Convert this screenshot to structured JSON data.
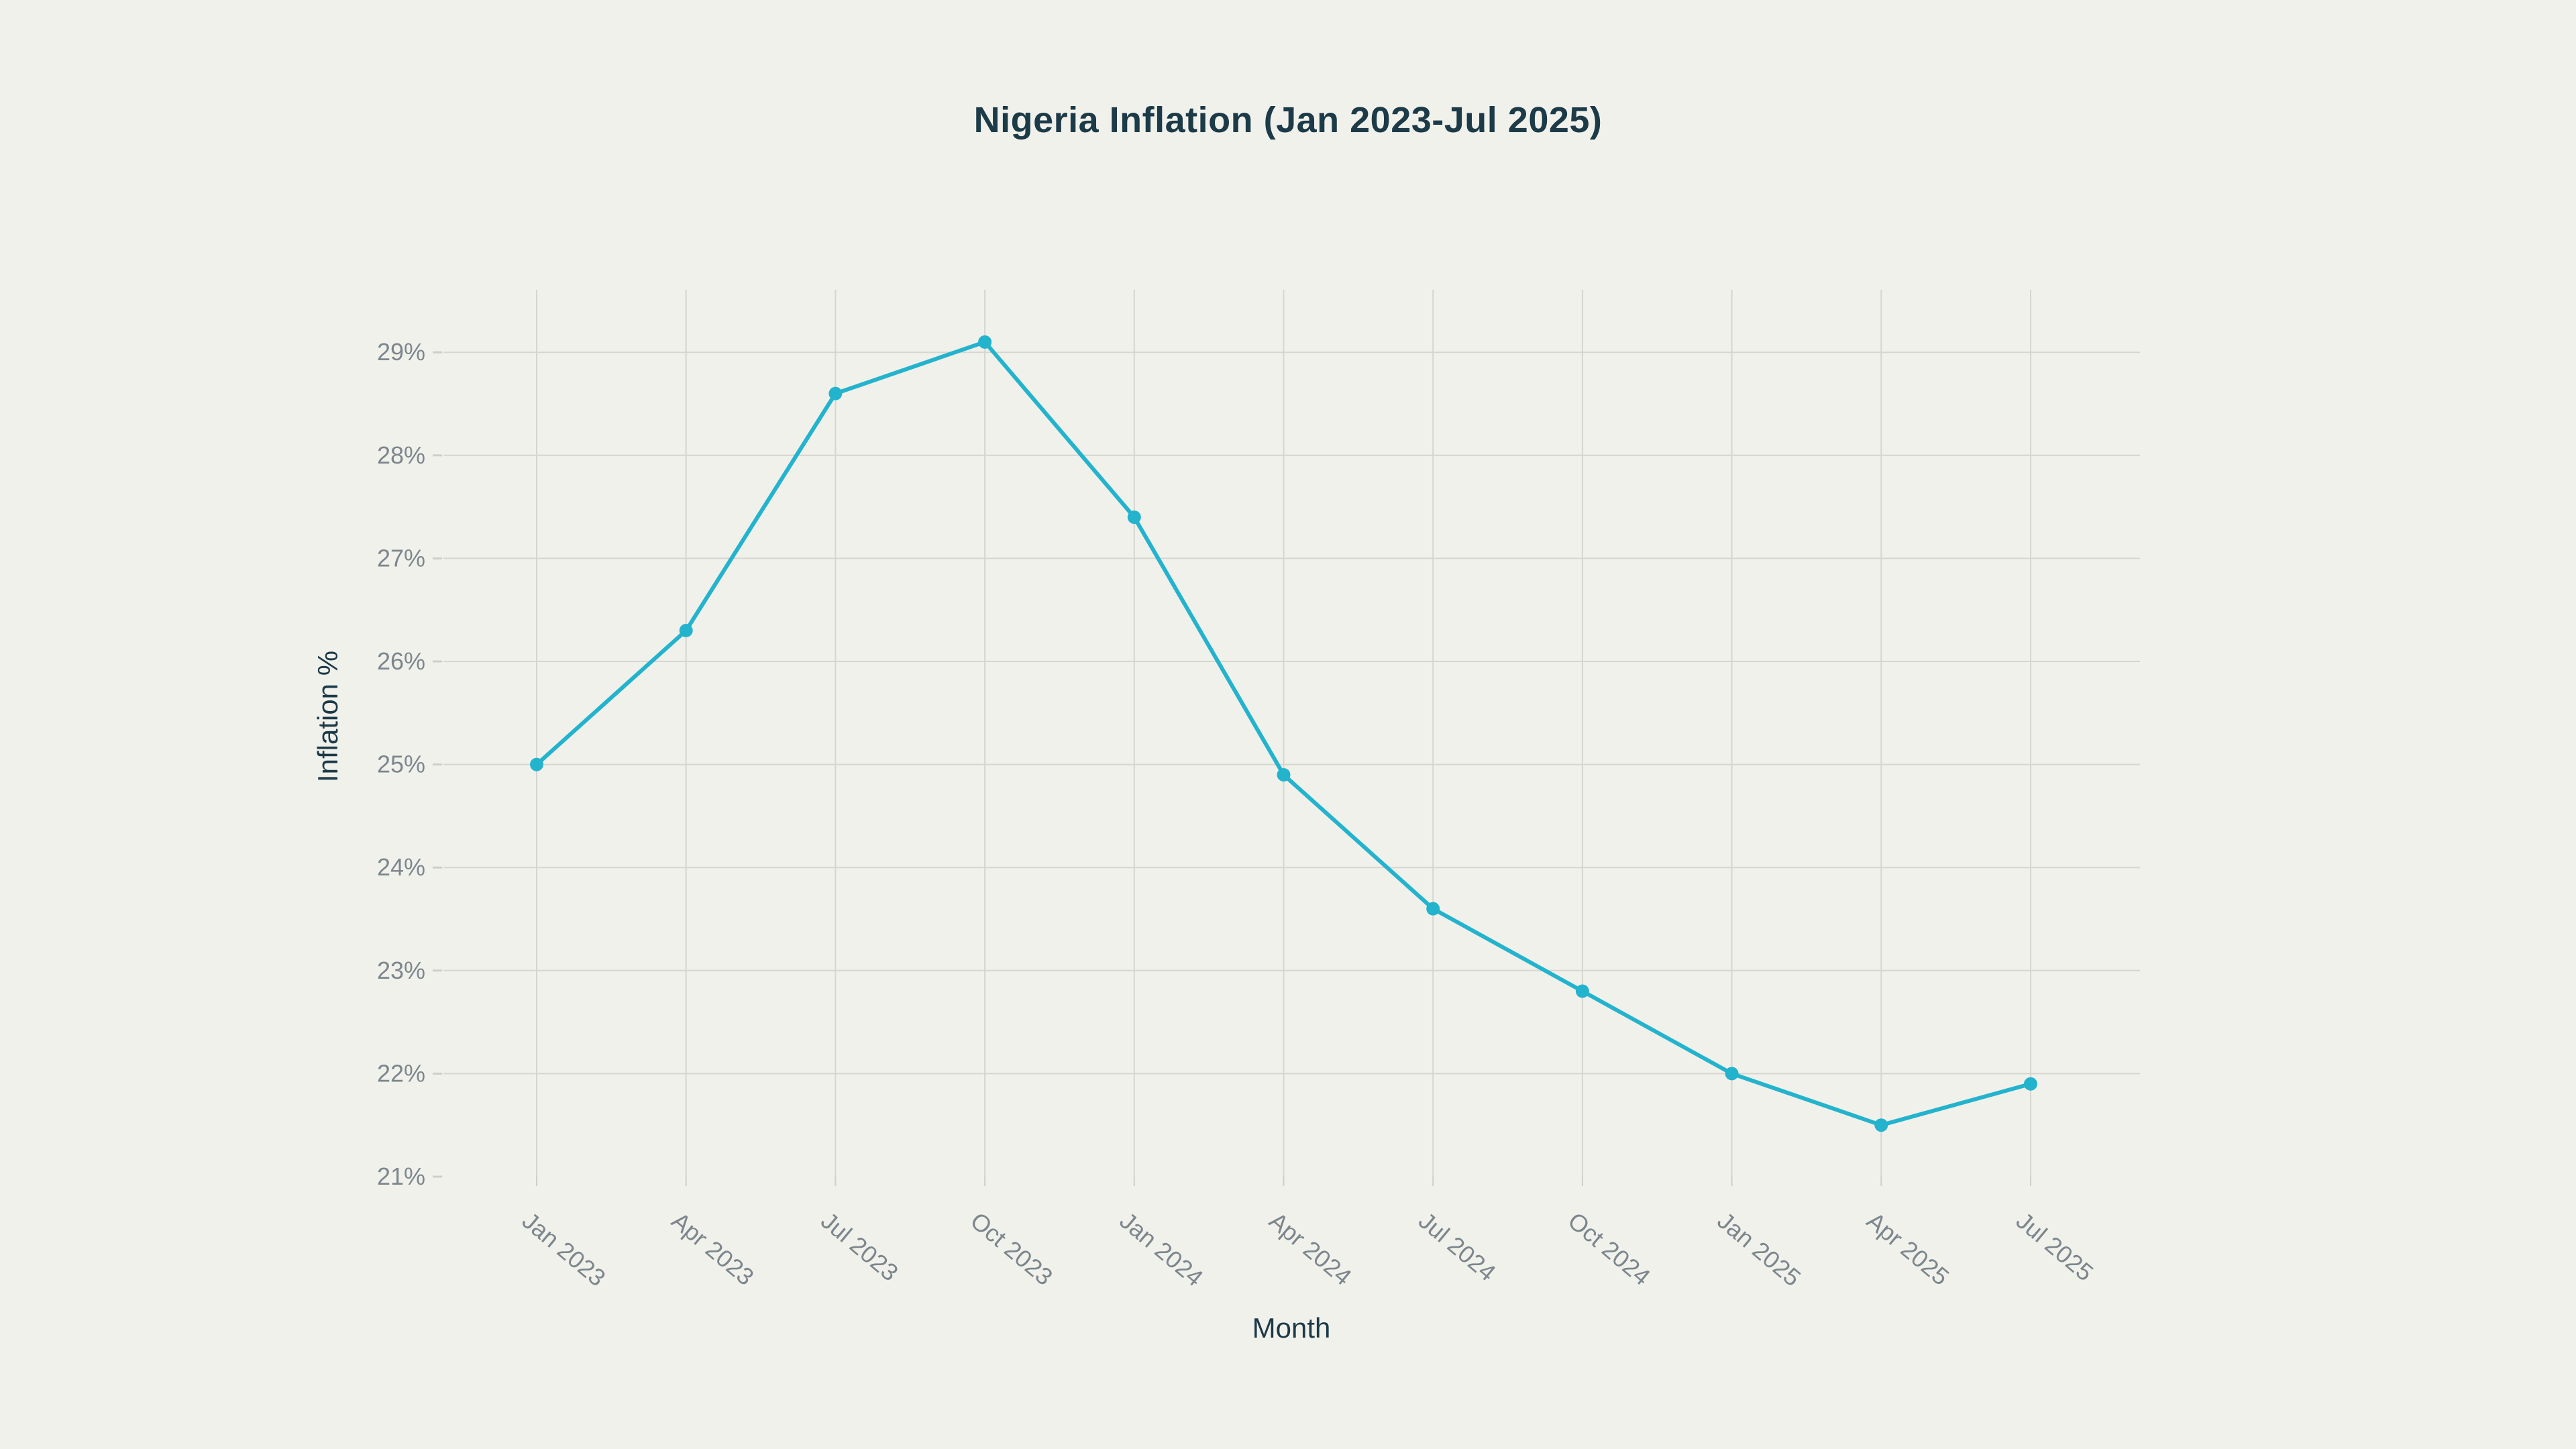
{
  "chart_data": {
    "type": "line",
    "title": "Nigeria Inflation (Jan 2023-Jul 2025)",
    "xlabel": "Month",
    "ylabel": "Inflation %",
    "categories": [
      "Jan 2023",
      "Apr 2023",
      "Jul 2023",
      "Oct 2023",
      "Jan 2024",
      "Apr 2024",
      "Jul 2024",
      "Oct 2024",
      "Jan 2025",
      "Apr 2025",
      "Jul 2025"
    ],
    "values": [
      25.0,
      26.3,
      28.6,
      29.1,
      27.4,
      24.9,
      23.6,
      22.8,
      22.0,
      21.5,
      21.9
    ],
    "y_tick_labels": [
      "21%",
      "22%",
      "23%",
      "24%",
      "25%",
      "26%",
      "27%",
      "28%",
      "29%"
    ],
    "y_tick_values": [
      21,
      22,
      23,
      24,
      25,
      26,
      27,
      28,
      29
    ],
    "ylim": [
      21,
      29.6
    ],
    "grid": true,
    "legend": false,
    "x_tick_angle_deg": 40,
    "colors": {
      "background": "#f1f1ec",
      "line": "#24b3cd",
      "marker": "#24b3cd",
      "gridline": "#d6d6d0",
      "tick_mark": "#cfcfc9",
      "tick_label": "#7c868c",
      "title_text": "#1c3a47"
    }
  }
}
